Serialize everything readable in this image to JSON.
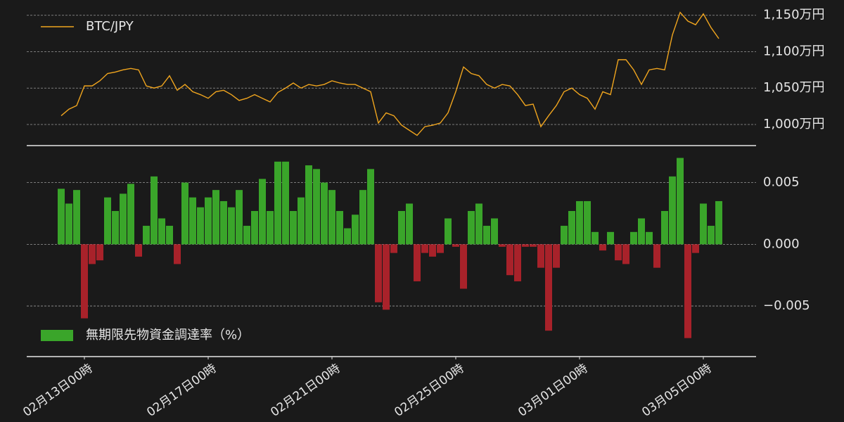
{
  "chart_data": [
    {
      "type": "line",
      "legend": "upper left",
      "grid": true,
      "x": [
        "02月12日06時",
        "02月12日12時",
        "02月12日18時",
        "02月13日00時",
        "02月13日06時",
        "02月13日12時",
        "02月13日18時",
        "02月14日00時",
        "02月14日06時",
        "02月14日12時",
        "02月14日18時",
        "02月15日00時",
        "02月15日06時",
        "02月15日12時",
        "02月15日18時",
        "02月16日00時",
        "02月16日06時",
        "02月16日12時",
        "02月16日18時",
        "02月17日00時",
        "02月17日06時",
        "02月17日12時",
        "02月17日18時",
        "02月18日00時",
        "02月18日06時",
        "02月18日12時",
        "02月18日18時",
        "02月19日00時",
        "02月19日06時",
        "02月19日12時",
        "02月19日18時",
        "02月20日00時",
        "02月20日06時",
        "02月20日12時",
        "02月20日18時",
        "02月21日00時",
        "02月21日06時",
        "02月21日12時",
        "02月21日18時",
        "02月22日00時",
        "02月22日06時",
        "02月22日12時",
        "02月22日18時",
        "02月23日00時",
        "02月23日06時",
        "02月23日12時",
        "02月23日18時",
        "02月24日00時",
        "02月24日06時",
        "02月24日12時",
        "02月24日18時",
        "02月25日00時",
        "02月25日06時",
        "02月25日12時",
        "02月25日18時",
        "02月26日00時",
        "02月26日06時",
        "02月26日12時",
        "02月26日18時",
        "02月27日00時",
        "02月27日06時",
        "02月27日12時",
        "02月27日18時",
        "02月28日00時",
        "02月28日06時",
        "02月28日12時",
        "02月28日18時",
        "03月01日00時",
        "03月01日06時",
        "03月01日12時",
        "03月01日18時",
        "03月02日00時",
        "03月02日06時",
        "03月02日12時",
        "03月02日18時",
        "03月03日00時",
        "03月03日06時",
        "03月03日12時",
        "03月03日18時",
        "03月04日00時",
        "03月04日06時",
        "03月04日12時",
        "03月04日18時",
        "03月05日00時",
        "03月05日06時",
        "03月05日12時"
      ],
      "series": [
        {
          "name": "BTC/JPY",
          "color": "#f0a51e",
          "values": [
            1012,
            1021,
            1026,
            1053,
            1053,
            1060,
            1070,
            1072,
            1075,
            1077,
            1075,
            1053,
            1050,
            1053,
            1067,
            1047,
            1055,
            1045,
            1041,
            1036,
            1045,
            1047,
            1041,
            1033,
            1036,
            1041,
            1036,
            1031,
            1044,
            1050,
            1057,
            1050,
            1055,
            1053,
            1055,
            1060,
            1057,
            1055,
            1055,
            1050,
            1045,
            1002,
            1016,
            1012,
            999,
            992,
            985,
            997,
            999,
            1002,
            1016,
            1045,
            1079,
            1070,
            1067,
            1055,
            1050,
            1055,
            1053,
            1041,
            1026,
            1028,
            997,
            1012,
            1026,
            1045,
            1050,
            1041,
            1036,
            1021,
            1045,
            1041,
            1089,
            1089,
            1075,
            1055,
            1075,
            1077,
            1075,
            1123,
            1154,
            1142,
            1137,
            1152,
            1133,
            1118
          ]
        }
      ],
      "ylim": [
        971,
        1171
      ],
      "yticks": [
        {
          "value": 1000,
          "label": "1,000万円"
        },
        {
          "value": 1050,
          "label": "1,050万円"
        },
        {
          "value": 1100,
          "label": "1,100万円"
        },
        {
          "value": 1150,
          "label": "1,150万円"
        }
      ]
    },
    {
      "type": "bar",
      "legend": "lower left",
      "grid": true,
      "x": [
        "02月12日06時",
        "02月12日12時",
        "02月12日18時",
        "02月13日00時",
        "02月13日06時",
        "02月13日12時",
        "02月13日18時",
        "02月14日00時",
        "02月14日06時",
        "02月14日12時",
        "02月14日18時",
        "02月15日00時",
        "02月15日06時",
        "02月15日12時",
        "02月15日18時",
        "02月16日00時",
        "02月16日06時",
        "02月16日12時",
        "02月16日18時",
        "02月17日00時",
        "02月17日06時",
        "02月17日12時",
        "02月17日18時",
        "02月18日00時",
        "02月18日06時",
        "02月18日12時",
        "02月18日18時",
        "02月19日00時",
        "02月19日06時",
        "02月19日12時",
        "02月19日18時",
        "02月20日00時",
        "02月20日06時",
        "02月20日12時",
        "02月20日18時",
        "02月21日00時",
        "02月21日06時",
        "02月21日12時",
        "02月21日18時",
        "02月22日00時",
        "02月22日06時",
        "02月22日12時",
        "02月22日18時",
        "02月23日00時",
        "02月23日06時",
        "02月23日12時",
        "02月23日18時",
        "02月24日00時",
        "02月24日06時",
        "02月24日12時",
        "02月24日18時",
        "02月25日00時",
        "02月25日06時",
        "02月25日12時",
        "02月25日18時",
        "02月26日00時",
        "02月26日06時",
        "02月26日12時",
        "02月26日18時",
        "02月27日00時",
        "02月27日06時",
        "02月27日12時",
        "02月27日18時",
        "02月28日00時",
        "02月28日06時",
        "02月28日12時",
        "02月28日18時",
        "03月01日00時",
        "03月01日06時",
        "03月01日12時",
        "03月01日18時",
        "03月02日00時",
        "03月02日06時",
        "03月02日12時",
        "03月02日18時",
        "03月03日00時",
        "03月03日06時",
        "03月03日12時",
        "03月03日18時",
        "03月04日00時",
        "03月04日06時",
        "03月04日12時",
        "03月04日18時",
        "03月05日00時",
        "03月05日06時",
        "03月05日12時"
      ],
      "series": [
        {
          "name": "無期限先物資金調達率（%）",
          "color": "#3aa52a",
          "negative_color": "#a8222a",
          "values": [
            0.0045,
            0.0033,
            0.0044,
            -0.006,
            -0.0016,
            -0.0013,
            0.0038,
            0.0027,
            0.0041,
            0.0049,
            -0.001,
            0.0015,
            0.0055,
            0.0021,
            0.0015,
            -0.0016,
            0.005,
            0.0038,
            0.003,
            0.0038,
            0.0044,
            0.0035,
            0.003,
            0.0044,
            0.0015,
            0.0027,
            0.0053,
            0.0027,
            0.0067,
            0.0067,
            0.0027,
            0.0038,
            0.0064,
            0.0061,
            0.005,
            0.0044,
            0.0027,
            0.0013,
            0.0024,
            0.0044,
            0.0061,
            -0.0047,
            -0.0053,
            -0.0007,
            0.0027,
            0.0033,
            -0.003,
            -0.0007,
            -0.001,
            -0.0007,
            0.0021,
            -0.0002,
            -0.0036,
            0.0027,
            0.0033,
            0.0015,
            0.0021,
            -0.0002,
            -0.0025,
            -0.003,
            -0.0002,
            -0.0002,
            -0.0019,
            -0.007,
            -0.0019,
            0.0015,
            0.0027,
            0.0035,
            0.0035,
            0.001,
            -0.0005,
            0.001,
            -0.0013,
            -0.0016,
            0.001,
            0.0021,
            0.001,
            -0.0019,
            0.0027,
            0.0055,
            0.007,
            -0.0076,
            -0.0007,
            0.0033,
            0.0015,
            0.0035
          ]
        }
      ],
      "ylim": [
        -0.0091,
        0.008
      ],
      "yticks": [
        {
          "value": -0.005,
          "label": "−0.005"
        },
        {
          "value": 0,
          "label": "0.000"
        },
        0.005
      ],
      "xticks": [
        "02月13日00時",
        "02月17日00時",
        "02月21日00時",
        "02月25日00時",
        "03月01日00時",
        "03月05日00時"
      ]
    }
  ]
}
